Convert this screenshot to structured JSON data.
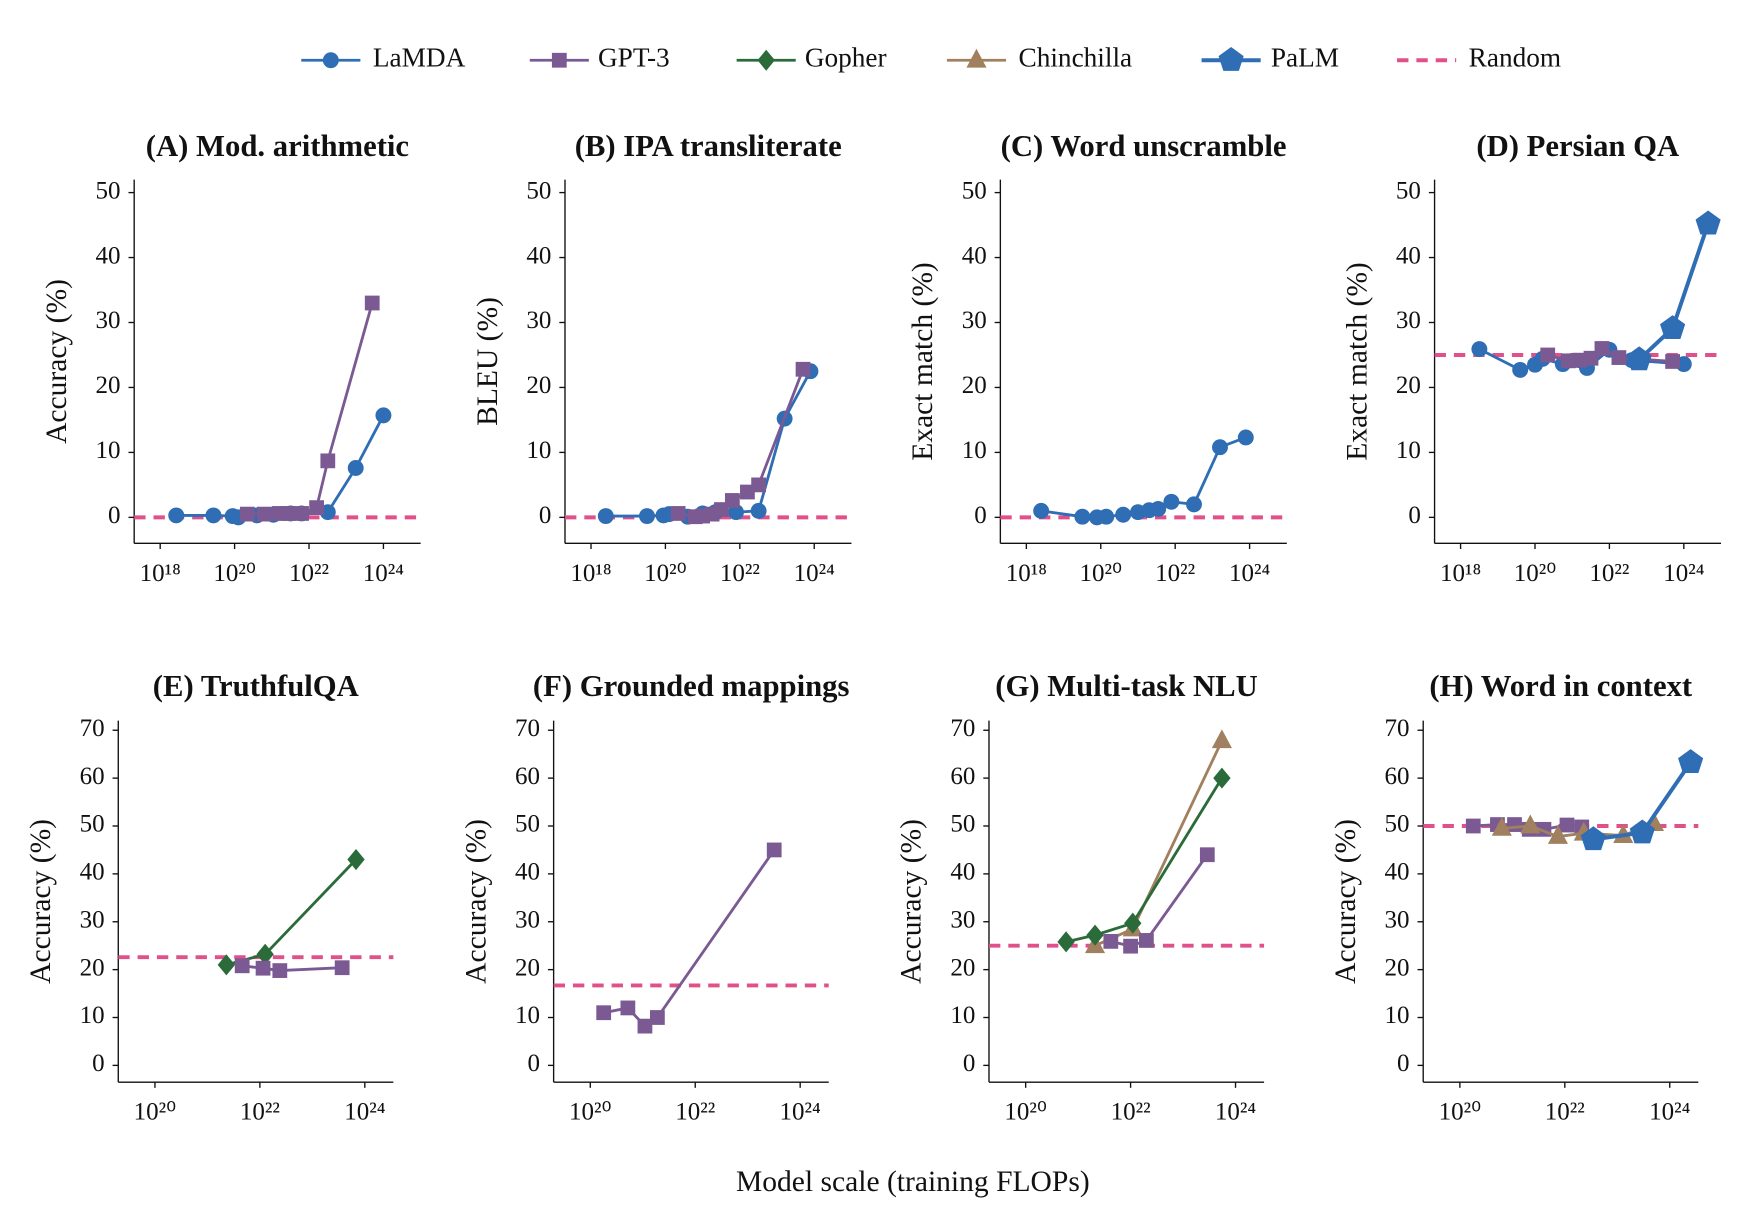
{
  "legend": [
    {
      "name": "LaMDA",
      "color": "#2f6db4",
      "marker": "circle"
    },
    {
      "name": "GPT-3",
      "color": "#7b5a93",
      "marker": "square"
    },
    {
      "name": "Gopher",
      "color": "#2b6b3a",
      "marker": "diamond"
    },
    {
      "name": "Chinchilla",
      "color": "#a0805e",
      "marker": "triangle"
    },
    {
      "name": "PaLM",
      "color": "#2f6db4",
      "marker": "pentagon"
    },
    {
      "name": "Random",
      "color": "#e0508a",
      "line_style": "dashed"
    }
  ],
  "xlabel": "Model scale (training FLOPs)",
  "chart_data": [
    {
      "type": "line",
      "title": "(A) Mod. arithmetic",
      "ylabel": "Accuracy (%)",
      "log_x": true,
      "xlim": [
        2e+17,
        1e+25
      ],
      "ylim": [
        -4,
        52
      ],
      "xticks": [
        {
          "value": 1e+18,
          "label": "10¹⁸"
        },
        {
          "value": 1e+20,
          "label": "10²⁰"
        },
        {
          "value": 1e+22,
          "label": "10²²"
        },
        {
          "value": 1e+24,
          "label": "10²⁴"
        }
      ],
      "yticks": [
        0,
        10,
        20,
        30,
        40,
        50
      ],
      "random": 0,
      "series": [
        {
          "name": "LaMDA",
          "x": [
            2.7e+18,
            2.7e+19,
            8.9e+19,
            1.26e+20,
            4e+20,
            1.1e+21,
            3.2e+21,
            6.3e+21,
            3.2e+22,
            1.8e+23,
            1e+24
          ],
          "values": [
            0.3,
            0.3,
            0.2,
            0.0,
            0.3,
            0.4,
            0.6,
            0.6,
            0.8,
            7.6,
            15.7
          ]
        },
        {
          "name": "GPT-3",
          "x": [
            2.2e+20,
            6.3e+20,
            1.6e+21,
            2.8e+21,
            6.3e+21,
            1.6e+22,
            3.2e+22,
            5e+23
          ],
          "values": [
            0.5,
            0.5,
            0.6,
            0.6,
            0.6,
            1.5,
            8.7,
            33
          ]
        }
      ]
    },
    {
      "type": "line",
      "title": "(B) IPA transliterate",
      "ylabel": "BLEU (%)",
      "log_x": true,
      "xlim": [
        2e+17,
        1e+25
      ],
      "ylim": [
        -4,
        52
      ],
      "xticks": [
        {
          "value": 1e+18,
          "label": "10¹⁸"
        },
        {
          "value": 1e+20,
          "label": "10²⁰"
        },
        {
          "value": 1e+22,
          "label": "10²²"
        },
        {
          "value": 1e+24,
          "label": "10²⁴"
        }
      ],
      "yticks": [
        0,
        10,
        20,
        30,
        40,
        50
      ],
      "random": 0,
      "series": [
        {
          "name": "LaMDA",
          "x": [
            2.5e+18,
            3.2e+19,
            8.9e+19,
            1.26e+20,
            4e+20,
            1e+21,
            2.2e+21,
            7.9e+21,
            3.2e+22,
            1.6e+23,
            7.9e+23
          ],
          "values": [
            0.2,
            0.2,
            0.3,
            0.5,
            0.1,
            0.6,
            0.8,
            0.8,
            1.0,
            15.2,
            22.5
          ]
        },
        {
          "name": "GPT-3",
          "x": [
            2.2e+20,
            6.3e+20,
            1e+21,
            1.8e+21,
            3.2e+21,
            6.3e+21,
            1.6e+22,
            3.2e+22,
            5e+23
          ],
          "values": [
            0.6,
            0.1,
            0.2,
            0.5,
            1.2,
            2.6,
            3.9,
            5.0,
            22.8
          ]
        }
      ]
    },
    {
      "type": "line",
      "title": "(C) Word unscramble",
      "ylabel": "Exact match (%)",
      "log_x": true,
      "xlim": [
        2e+17,
        1e+25
      ],
      "ylim": [
        -4,
        52
      ],
      "xticks": [
        {
          "value": 1e+18,
          "label": "10¹⁸"
        },
        {
          "value": 1e+20,
          "label": "10²⁰"
        },
        {
          "value": 1e+22,
          "label": "10²²"
        },
        {
          "value": 1e+24,
          "label": "10²⁴"
        }
      ],
      "yticks": [
        0,
        10,
        20,
        30,
        40,
        50
      ],
      "random": 0,
      "series": [
        {
          "name": "LaMDA",
          "x": [
            2.5e+18,
            3.2e+19,
            7.9e+19,
            1.4e+20,
            4e+20,
            1e+21,
            2e+21,
            3.5e+21,
            7.9e+21,
            3.2e+22,
            1.6e+23,
            7.9e+23
          ],
          "values": [
            1.0,
            0.1,
            0.0,
            0.1,
            0.4,
            0.8,
            1.1,
            1.3,
            2.4,
            2.0,
            10.8,
            12.3
          ]
        }
      ]
    },
    {
      "type": "line",
      "title": "(D) Persian QA",
      "ylabel": "Exact match (%)",
      "log_x": true,
      "xlim": [
        2e+17,
        1e+25
      ],
      "ylim": [
        -4,
        52
      ],
      "xticks": [
        {
          "value": 1e+18,
          "label": "10¹⁸"
        },
        {
          "value": 1e+20,
          "label": "10²⁰"
        },
        {
          "value": 1e+22,
          "label": "10²²"
        },
        {
          "value": 1e+24,
          "label": "10²⁴"
        }
      ],
      "yticks": [
        0,
        10,
        20,
        30,
        40,
        50
      ],
      "random": 25,
      "series": [
        {
          "name": "LaMDA",
          "x": [
            3.2e+18,
            4e+19,
            1e+20,
            1.6e+20,
            5.6e+20,
            2.5e+21,
            1e+22,
            4e+22,
            1e+24
          ],
          "values": [
            25.9,
            22.7,
            23.5,
            24.4,
            23.6,
            23.0,
            25.8,
            24.2,
            23.6
          ]
        },
        {
          "name": "GPT-3",
          "x": [
            2.2e+20,
            7.9e+20,
            1.6e+21,
            3.2e+21,
            6.3e+21,
            1.8e+22,
            5e+23
          ],
          "values": [
            25.0,
            24.1,
            24.2,
            24.5,
            26.0,
            24.6,
            24.0
          ]
        },
        {
          "name": "PaLM",
          "x": [
            6.3e+22,
            5e+23,
            4.5e+24
          ],
          "values": [
            24.3,
            29.1,
            45.2
          ]
        }
      ]
    },
    {
      "type": "line",
      "title": "(E) TruthfulQA",
      "ylabel": "Accuracy (%)",
      "log_x": true,
      "xlim": [
        2e+19,
        3.5e+24
      ],
      "ylim": [
        -3.5,
        72
      ],
      "xticks": [
        {
          "value": 1e+20,
          "label": "10²⁰"
        },
        {
          "value": 1e+22,
          "label": "10²²"
        },
        {
          "value": 1e+24,
          "label": "10²⁴"
        }
      ],
      "yticks": [
        0,
        10,
        20,
        30,
        40,
        50,
        60,
        70
      ],
      "random": 22.6,
      "series": [
        {
          "name": "Gopher",
          "x": [
            2.3e+21,
            1.26e+22,
            6.8e+23
          ],
          "values": [
            21.0,
            23.2,
            43.0
          ]
        },
        {
          "name": "GPT-3",
          "x": [
            4.6e+21,
            1.15e+22,
            2.4e+22,
            3.7e+23
          ],
          "values": [
            20.8,
            20.3,
            19.8,
            20.4
          ]
        }
      ]
    },
    {
      "type": "line",
      "title": "(F) Grounded mappings",
      "ylabel": "Accuracy (%)",
      "log_x": true,
      "xlim": [
        2e+19,
        3.5e+24
      ],
      "ylim": [
        -3.5,
        72
      ],
      "xticks": [
        {
          "value": 1e+20,
          "label": "10²⁰"
        },
        {
          "value": 1e+22,
          "label": "10²²"
        },
        {
          "value": 1e+24,
          "label": "10²⁴"
        }
      ],
      "yticks": [
        0,
        10,
        20,
        30,
        40,
        50,
        60,
        70
      ],
      "random": 16.7,
      "series": [
        {
          "name": "GPT-3",
          "x": [
            1.8e+20,
            5.2e+20,
            1.1e+21,
            1.9e+21,
            3.2e+23
          ],
          "values": [
            11.0,
            12.0,
            8.2,
            10.0,
            45.0
          ]
        }
      ]
    },
    {
      "type": "line",
      "title": "(G) Multi-task NLU",
      "ylabel": "Accuracy (%)",
      "log_x": true,
      "xlim": [
        2e+19,
        3.5e+24
      ],
      "ylim": [
        -3.5,
        72
      ],
      "xticks": [
        {
          "value": 1e+20,
          "label": "10²⁰"
        },
        {
          "value": 1e+22,
          "label": "10²²"
        },
        {
          "value": 1e+24,
          "label": "10²⁴"
        }
      ],
      "yticks": [
        0,
        10,
        20,
        30,
        40,
        50,
        60,
        70
      ],
      "random": 25,
      "series": [
        {
          "name": "Chinchilla",
          "x": [
            2.1e+21,
            1.1e+22,
            5.5e+23
          ],
          "values": [
            25.0,
            28.5,
            67.8
          ]
        },
        {
          "name": "Gopher",
          "x": [
            5.9e+20,
            2.1e+21,
            1.1e+22,
            5.5e+23
          ],
          "values": [
            25.8,
            27.2,
            29.7,
            60.0
          ]
        },
        {
          "name": "GPT-3",
          "x": [
            4.2e+21,
            1e+22,
            2e+22,
            2.9e+23
          ],
          "values": [
            25.9,
            24.9,
            26.1,
            44.0
          ]
        }
      ]
    },
    {
      "type": "line",
      "title": "(H) Word in context",
      "ylabel": "Accuracy (%)",
      "log_x": true,
      "xlim": [
        2e+19,
        3.5e+24
      ],
      "ylim": [
        -3.5,
        72
      ],
      "xticks": [
        {
          "value": 1e+20,
          "label": "10²⁰"
        },
        {
          "value": 1e+22,
          "label": "10²²"
        },
        {
          "value": 1e+24,
          "label": "10²⁴"
        }
      ],
      "yticks": [
        0,
        10,
        20,
        30,
        40,
        50,
        60,
        70
      ],
      "random": 50,
      "series": [
        {
          "name": "GPT-3",
          "x": [
            1.8e+20,
            5.2e+20,
            1.1e+21,
            2.1e+21,
            4e+21,
            1.1e+22,
            2.1e+22
          ],
          "values": [
            50.0,
            50.3,
            50.3,
            49.3,
            49.3,
            50.2,
            49.8
          ]
        },
        {
          "name": "Chinchilla",
          "x": [
            6.3e+20,
            2.2e+21,
            7.4e+21,
            2.3e+22,
            1.3e+23,
            5e+23
          ],
          "values": [
            49.5,
            50.0,
            47.8,
            48.5,
            48.0,
            50.5
          ]
        },
        {
          "name": "PaLM",
          "x": [
            3.5e+22,
            3e+23,
            2.5e+24
          ],
          "values": [
            47.2,
            48.6,
            63.3
          ]
        }
      ]
    }
  ]
}
